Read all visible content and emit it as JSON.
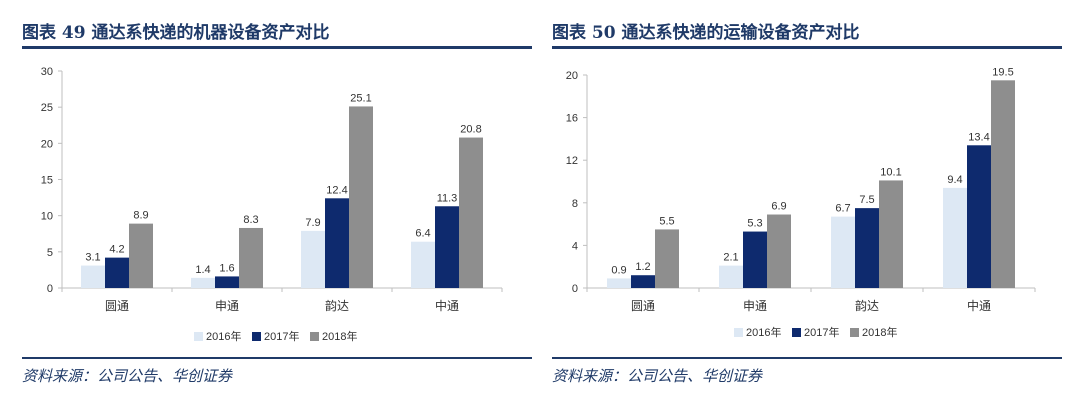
{
  "colors": {
    "s2016": "#dde8f4",
    "s2017": "#0e2a6e",
    "s2018": "#8e8e8e",
    "axis": "#bfbfbf",
    "text": "#333333",
    "accent": "#1f3a68"
  },
  "left": {
    "title": "图表 49   通达系快递的机器设备资产对比",
    "source": "资料来源：公司公告、华创证券"
  },
  "right": {
    "title": "图表 50   通达系快递的运输设备资产对比",
    "source": "资料来源：公司公告、华创证券"
  },
  "chart_data": [
    {
      "type": "bar",
      "categories": [
        "圆通",
        "申通",
        "韵达",
        "中通"
      ],
      "series": [
        {
          "name": "2016年",
          "values": [
            3.1,
            1.4,
            7.9,
            6.4
          ]
        },
        {
          "name": "2017年",
          "values": [
            4.2,
            1.6,
            12.4,
            11.3
          ]
        },
        {
          "name": "2018年",
          "values": [
            8.9,
            8.3,
            25.1,
            20.8
          ]
        }
      ],
      "ylim": [
        0,
        30
      ],
      "yticks": [
        0,
        5,
        10,
        15,
        20,
        25,
        30
      ],
      "legend": "bottom",
      "grid": false
    },
    {
      "type": "bar",
      "categories": [
        "圆通",
        "申通",
        "韵达",
        "中通"
      ],
      "series": [
        {
          "name": "2016年",
          "values": [
            0.9,
            2.1,
            6.7,
            9.4
          ]
        },
        {
          "name": "2017年",
          "values": [
            1.2,
            5.3,
            7.5,
            13.4
          ]
        },
        {
          "name": "2018年",
          "values": [
            5.5,
            6.9,
            10.1,
            19.5
          ]
        }
      ],
      "ylim": [
        0,
        20
      ],
      "yticks": [
        0,
        4,
        8,
        12,
        16,
        20
      ],
      "legend": "bottom",
      "grid": false
    }
  ]
}
